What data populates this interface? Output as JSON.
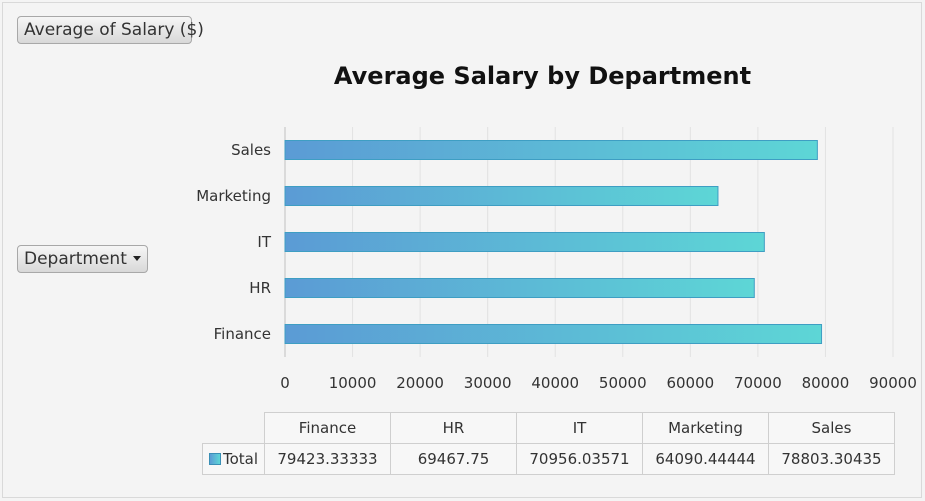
{
  "value_field_label": "Average of Salary ($)",
  "axis_field_label": "Department",
  "chart_data": {
    "type": "bar",
    "orientation": "horizontal",
    "title": "Average Salary by Department",
    "categories": [
      "Finance",
      "HR",
      "IT",
      "Marketing",
      "Sales"
    ],
    "series": [
      {
        "name": "Total",
        "values": [
          79423.33333,
          69467.75,
          70956.03571,
          64090.44444,
          78803.30435
        ]
      }
    ],
    "xlim": [
      0,
      90000
    ],
    "xticks": [
      "0",
      "10000",
      "20000",
      "30000",
      "40000",
      "50000",
      "60000",
      "70000",
      "80000",
      "90000"
    ],
    "grid": true,
    "colors": {
      "bar_start": "#5b9bd5",
      "bar_end": "#5dd6d6",
      "bar_border": "#3e9ec3"
    }
  },
  "data_table": {
    "headers": [
      "Finance",
      "HR",
      "IT",
      "Marketing",
      "Sales"
    ],
    "row_label": "Total",
    "values": [
      "79423.33333",
      "69467.75",
      "70956.03571",
      "64090.44444",
      "78803.30435"
    ]
  }
}
